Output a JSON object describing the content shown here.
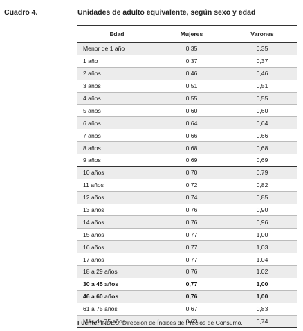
{
  "header": {
    "label": "Cuadro 4.",
    "title": "Unidades de adulto equivalente, según sexo y edad"
  },
  "table": {
    "columns": [
      "Edad",
      "Mujeres",
      "Varones"
    ],
    "rows": [
      {
        "edad": "Menor de 1 año",
        "mujeres": "0,35",
        "varones": "0,35"
      },
      {
        "edad": "1 año",
        "mujeres": "0,37",
        "varones": "0,37"
      },
      {
        "edad": "2 años",
        "mujeres": "0,46",
        "varones": "0,46"
      },
      {
        "edad": "3 años",
        "mujeres": "0,51",
        "varones": "0,51"
      },
      {
        "edad": "4 años",
        "mujeres": "0,55",
        "varones": "0,55"
      },
      {
        "edad": "5 años",
        "mujeres": "0,60",
        "varones": "0,60"
      },
      {
        "edad": "6 años",
        "mujeres": "0,64",
        "varones": "0,64"
      },
      {
        "edad": "7 años",
        "mujeres": "0,66",
        "varones": "0,66"
      },
      {
        "edad": "8 años",
        "mujeres": "0,68",
        "varones": "0,68"
      },
      {
        "edad": "9 años",
        "mujeres": "0,69",
        "varones": "0,69"
      },
      {
        "edad": "10 años",
        "mujeres": "0,70",
        "varones": "0,79"
      },
      {
        "edad": "11 años",
        "mujeres": "0,72",
        "varones": "0,82"
      },
      {
        "edad": "12 años",
        "mujeres": "0,74",
        "varones": "0,85"
      },
      {
        "edad": "13 años",
        "mujeres": "0,76",
        "varones": "0,90"
      },
      {
        "edad": "14 años",
        "mujeres": "0,76",
        "varones": "0,96"
      },
      {
        "edad": "15 años",
        "mujeres": "0,77",
        "varones": "1,00"
      },
      {
        "edad": "16 años",
        "mujeres": "0,77",
        "varones": "1,03"
      },
      {
        "edad": "17 años",
        "mujeres": "0,77",
        "varones": "1,04"
      },
      {
        "edad": "18 a 29 años",
        "mujeres": "0,76",
        "varones": "1,02"
      },
      {
        "edad": "30 a 45 años",
        "mujeres": "0,77",
        "varones": "1,00",
        "bold": true
      },
      {
        "edad": "46 a 60 años",
        "mujeres": "0,76",
        "varones": "1,00",
        "bold": true
      },
      {
        "edad": "61 a 75 años",
        "mujeres": "0,67",
        "varones": "0,83"
      },
      {
        "edad": "Más de 75 años",
        "mujeres": "0,63",
        "varones": "0,74"
      }
    ]
  },
  "footer": {
    "source_label": "Fuente:",
    "source_text": " INDEC, Dirección de Índices de Precios de Consumo."
  }
}
